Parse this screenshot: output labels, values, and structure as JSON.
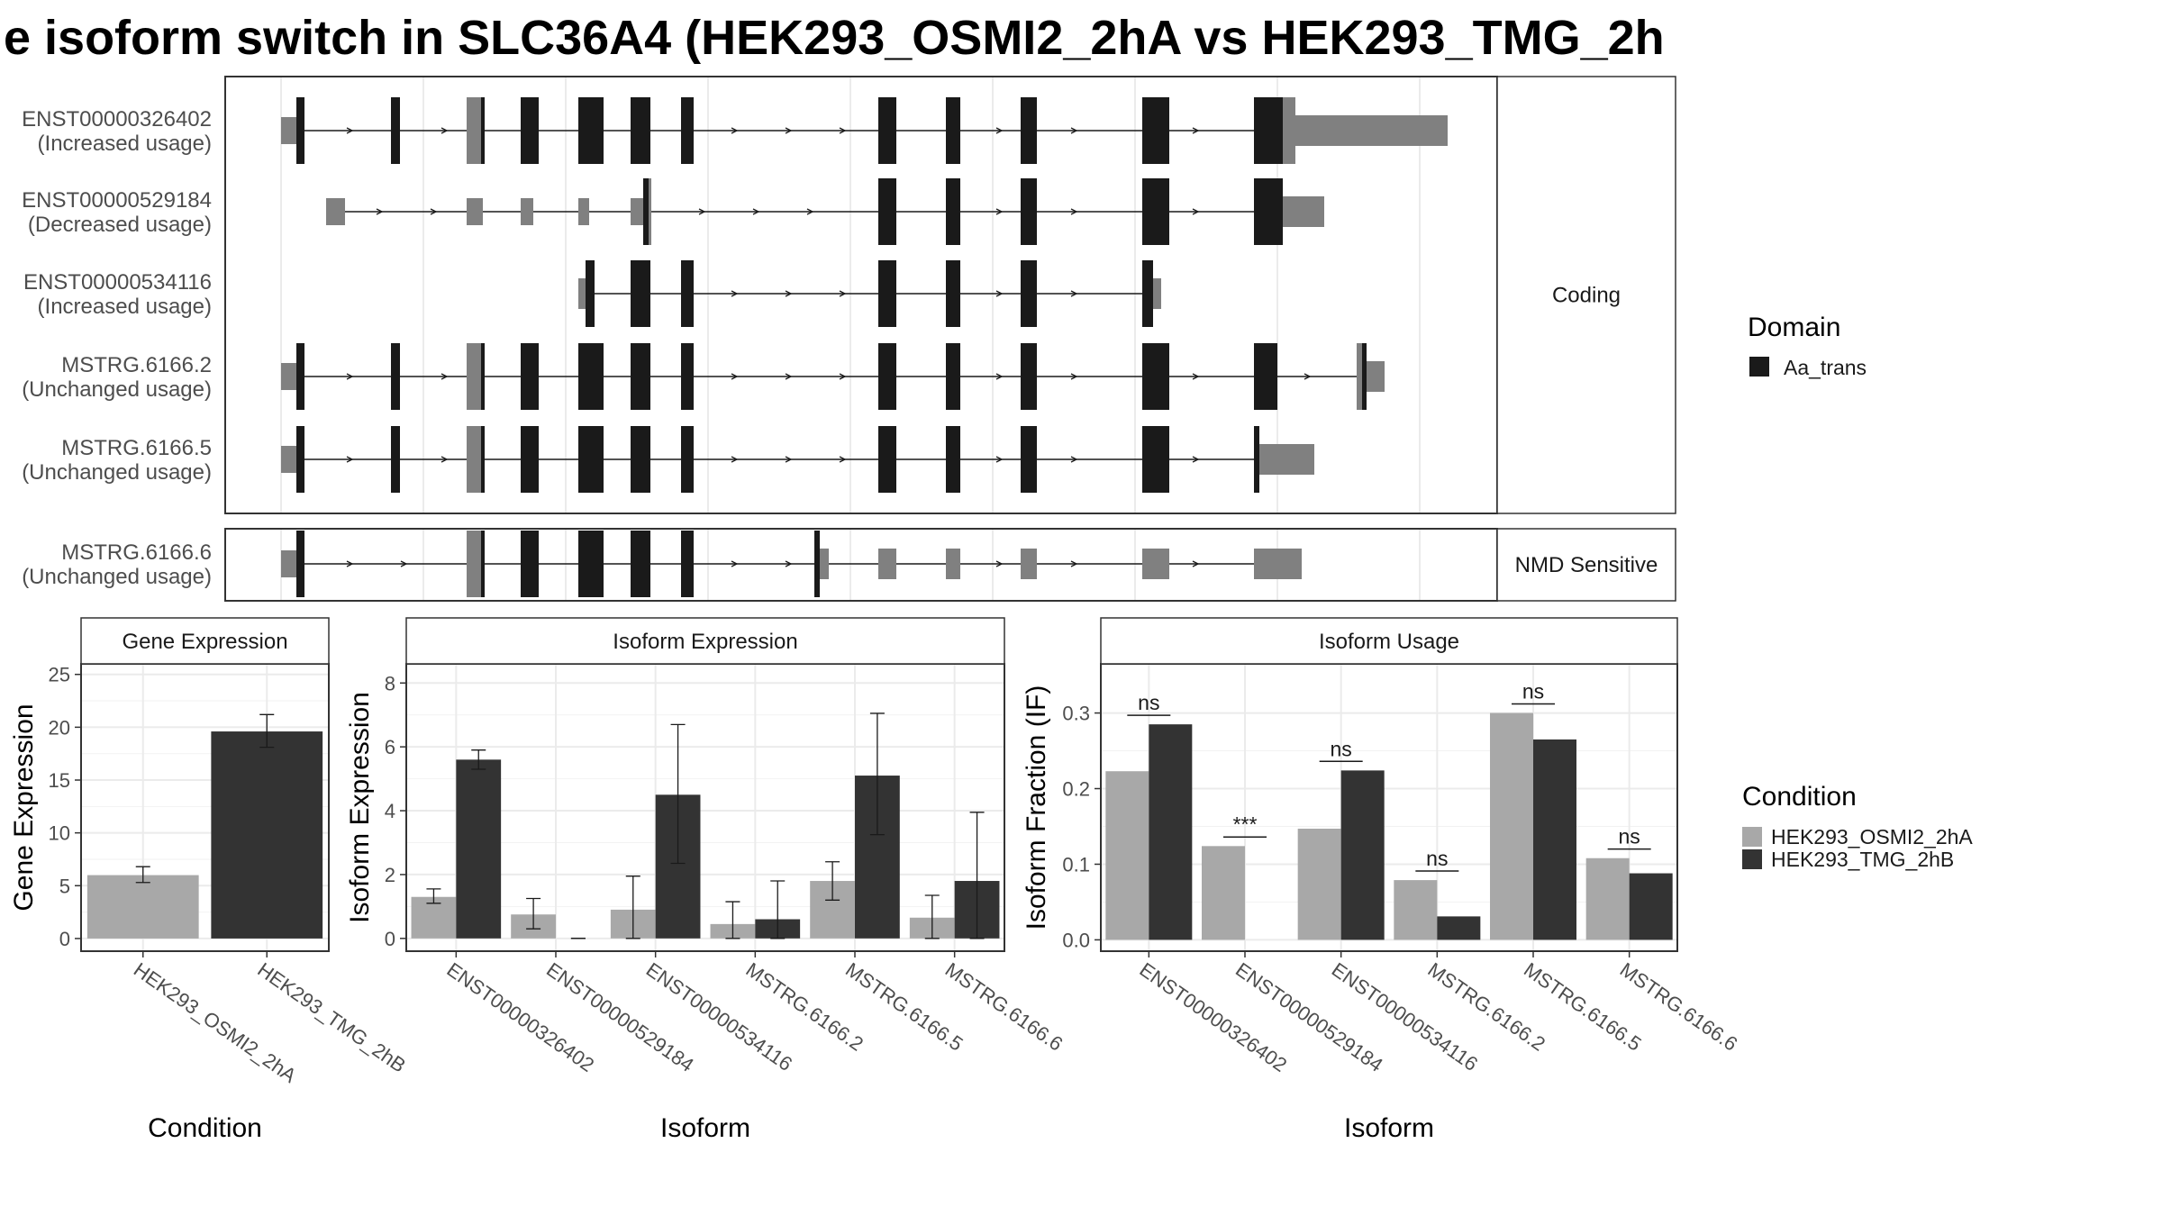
{
  "title": "e isoform switch in SLC36A4 (HEK293_OSMI2_2hA vs HEK293_TMG_2h",
  "colors": {
    "domain": "#1a1a1a",
    "utr": "#808080",
    "osmi": "#a8a8a8",
    "tmg": "#333333",
    "grid": "#ebebeb",
    "strip_fill": "#ffffff",
    "panel_border": "#333333"
  },
  "structure": {
    "facets": [
      {
        "label": "Coding",
        "isoforms": [
          {
            "id": "ENST00000326402",
            "usage": "(Increased usage)"
          },
          {
            "id": "ENST00000529184",
            "usage": "(Decreased usage)"
          },
          {
            "id": "ENST00000534116",
            "usage": "(Increased usage)"
          },
          {
            "id": "MSTRG.6166.2",
            "usage": "(Unchanged usage)"
          },
          {
            "id": "MSTRG.6166.5",
            "usage": "(Unchanged usage)"
          }
        ]
      },
      {
        "label": "NMD Sensitive",
        "isoforms": [
          {
            "id": "MSTRG.6166.6",
            "usage": "(Unchanged usage)"
          }
        ]
      }
    ],
    "legend_title": "Domain",
    "legend_items": [
      "Aa_trans"
    ]
  },
  "chart_data": [
    {
      "type": "bar",
      "title": "Gene Expression",
      "xlabel": "Condition",
      "ylabel": "Gene Expression",
      "categories": [
        "HEK293_OSMI2_2hA",
        "HEK293_TMG_2hB"
      ],
      "values": [
        6.0,
        19.6
      ],
      "error_low": [
        5.3,
        18.1
      ],
      "error_high": [
        6.8,
        21.2
      ],
      "ylim": [
        -1.2,
        26
      ],
      "yticks": [
        0,
        5,
        10,
        15,
        20,
        25
      ]
    },
    {
      "type": "bar",
      "title": "Isoform Expression",
      "xlabel": "Isoform",
      "ylabel": "Isoform Expression",
      "categories": [
        "ENST00000326402",
        "ENST00000529184",
        "ENST00000534116",
        "MSTRG.6166.2",
        "MSTRG.6166.5",
        "MSTRG.6166.6"
      ],
      "series": [
        {
          "name": "HEK293_OSMI2_2hA",
          "values": [
            1.3,
            0.75,
            0.9,
            0.45,
            1.8,
            0.65
          ],
          "error_low": [
            1.1,
            0.3,
            0.0,
            0.0,
            1.2,
            0.0
          ],
          "error_high": [
            1.55,
            1.25,
            1.95,
            1.15,
            2.4,
            1.35
          ]
        },
        {
          "name": "HEK293_TMG_2hB",
          "values": [
            5.6,
            0.0,
            4.5,
            0.6,
            5.1,
            1.8
          ],
          "error_low": [
            5.3,
            0.0,
            2.35,
            0.0,
            3.25,
            0.0
          ],
          "error_high": [
            5.9,
            0.0,
            6.7,
            1.8,
            7.05,
            3.95
          ]
        }
      ],
      "ylim": [
        -0.4,
        8.6
      ],
      "yticks": [
        0,
        2,
        4,
        6,
        8
      ]
    },
    {
      "type": "bar",
      "title": "Isoform Usage",
      "xlabel": "Isoform",
      "ylabel": "Isoform Fraction (IF)",
      "categories": [
        "ENST00000326402",
        "ENST00000529184",
        "ENST00000534116",
        "MSTRG.6166.2",
        "MSTRG.6166.5",
        "MSTRG.6166.6"
      ],
      "series": [
        {
          "name": "HEK293_OSMI2_2hA",
          "values": [
            0.223,
            0.124,
            0.147,
            0.079,
            0.3,
            0.108
          ]
        },
        {
          "name": "HEK293_TMG_2hB",
          "values": [
            0.285,
            0.0,
            0.224,
            0.031,
            0.265,
            0.088
          ]
        }
      ],
      "significance": [
        "ns",
        "***",
        "ns",
        "ns",
        "ns",
        "ns"
      ],
      "ylim": [
        -0.015,
        0.365
      ],
      "yticks": [
        "0.0",
        "0.1",
        "0.2",
        "0.3"
      ]
    }
  ],
  "condition_legend": {
    "title": "Condition",
    "items": [
      "HEK293_OSMI2_2hA",
      "HEK293_TMG_2hB"
    ]
  }
}
